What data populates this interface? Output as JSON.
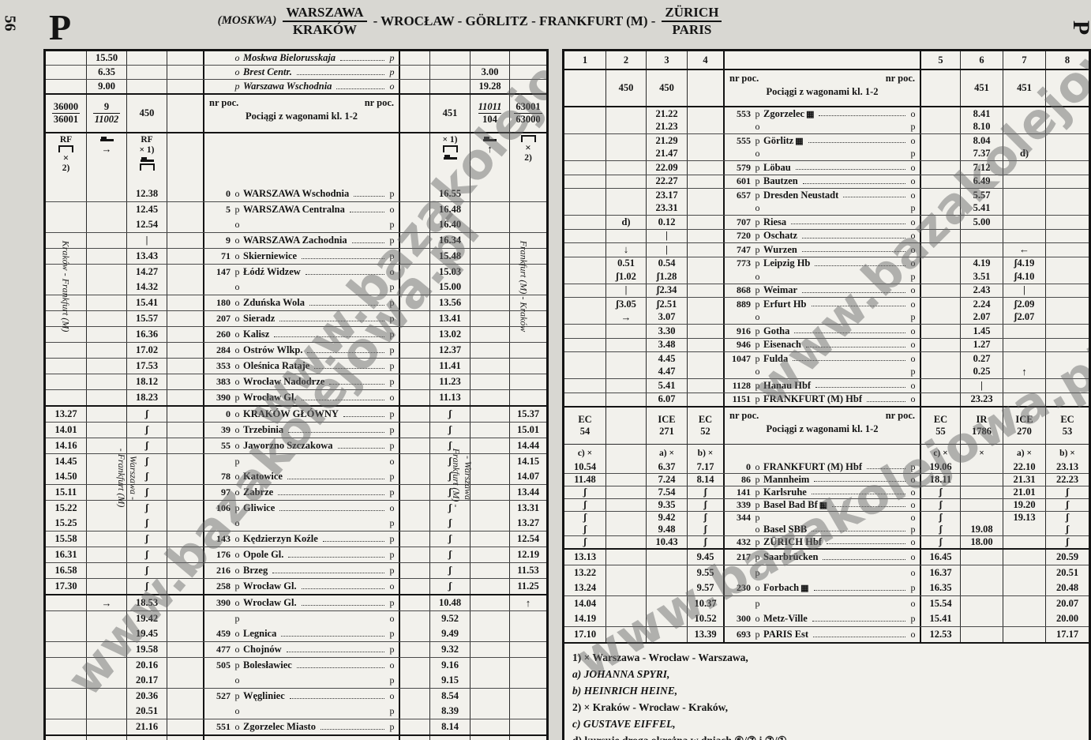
{
  "page": {
    "page_number": "56",
    "corner_letter_left": "P",
    "corner_letter_right": "P",
    "watermark": "www.bazakolejowa.pl",
    "title": {
      "prefix": "(MOSKWA)",
      "origin_top": "WARSZAWA",
      "origin_bottom": "KRAKÓW",
      "middle": "- WROCŁAW - GÖRLITZ - FRANKFURT (M) -",
      "dest_top": "ZÜRICH",
      "dest_bottom": "PARIS"
    }
  },
  "labels": {
    "nr_poc": "nr poc.",
    "wagons": "Pociągi z wagonami kl. 1-2",
    "rf": "RF",
    "x1": "× 1)",
    "x": "×",
    "n2": "2)"
  },
  "col_numbers": [
    "1",
    "2",
    "3",
    "4",
    "5",
    "6",
    "7",
    "8"
  ],
  "left_table": {
    "trains": {
      "c1a": "36000",
      "c1b": "36001",
      "c2a": "9",
      "c2b": "11002",
      "c3": "450",
      "c6": "451",
      "c7a": "11011",
      "c7b": "104",
      "c8a": "63001",
      "c8b": "63000"
    },
    "vlabels": {
      "col1": "Kraków - Frankfurt (M)",
      "col8": "Frankfurt (M) - Kraków",
      "krakow_left_1": "Warszawa -",
      "krakow_left_2": "- Frankfurt (M)",
      "krakow_right_1": "- Warszawa",
      "krakow_right_2": "Frankfurt (M) -"
    },
    "sections": {
      "pre": {
        "h": 17,
        "italic": true,
        "rows": [
          {
            "lm": "o",
            "nm": "Moskwa Bielorusskaja",
            "rm": "p",
            "t": {
              "2": "15.50"
            }
          },
          {
            "lm": "o",
            "nm": "Brest Centr.",
            "rm": "p",
            "t": {
              "2": "6.35",
              "7": "3.00"
            }
          },
          {
            "lm": "p",
            "nm": "Warszawa Wschodnia",
            "rm": "o",
            "t": {
              "2": "9.00",
              "7": "19.28"
            }
          }
        ]
      },
      "warszawa": {
        "h": 19,
        "rows": [
          {
            "km": "0",
            "lm": "o",
            "nm": "WARSZAWA Wschodnia",
            "rm": "p",
            "t": {
              "3": "12.38",
              "6": "16.55"
            }
          },
          {
            "km": "5",
            "lm": "p",
            "nm": "WARSZAWA Centralna",
            "rm": "o",
            "t": {
              "3": "12.45",
              "6": "16.48"
            }
          },
          {
            "nb": true,
            "lm": "o",
            "rm": "p",
            "t": {
              "3": "12.54",
              "6": "16.40"
            }
          },
          {
            "km": "9",
            "lm": "o",
            "nm": "WARSZAWA Zachodnia",
            "rm": "p",
            "t": {
              "3": "|",
              "6": "16.34"
            }
          },
          {
            "km": "71",
            "lm": "o",
            "nm": "Skierniewice",
            "rm": "p",
            "t": {
              "3": "13.43",
              "6": "15.48"
            }
          },
          {
            "km": "147",
            "lm": "p",
            "nm": "Łódź Widzew",
            "rm": "o",
            "t": {
              "3": "14.27",
              "6": "15.03"
            }
          },
          {
            "nb": true,
            "lm": "o",
            "rm": "p",
            "t": {
              "3": "14.32",
              "6": "15.00"
            }
          },
          {
            "km": "180",
            "lm": "o",
            "nm": "Zduńska Wola",
            "rm": "p",
            "t": {
              "3": "15.41",
              "6": "13.56"
            }
          },
          {
            "km": "207",
            "lm": "o",
            "nm": "Sieradz",
            "rm": "p",
            "t": {
              "3": "15.57",
              "6": "13.41"
            }
          },
          {
            "km": "260",
            "lm": "o",
            "nm": "Kalisz",
            "rm": "p",
            "t": {
              "3": "16.36",
              "6": "13.02"
            }
          },
          {
            "km": "284",
            "lm": "o",
            "nm": "Ostrów Wlkp.",
            "rm": "p",
            "t": {
              "3": "17.02",
              "6": "12.37"
            }
          },
          {
            "km": "353",
            "lm": "o",
            "nm": "Oleśnica Rataje",
            "rm": "p",
            "t": {
              "3": "17.53",
              "6": "11.41"
            }
          },
          {
            "km": "383",
            "lm": "o",
            "nm": "Wrocław Nadodrze",
            "rm": "p",
            "t": {
              "3": "18.12",
              "6": "11.23"
            }
          },
          {
            "km": "390",
            "lm": "p",
            "nm": "Wrocław Gl.",
            "rm": "o",
            "t": {
              "3": "18.23",
              "6": "11.13"
            }
          }
        ]
      },
      "krakow": {
        "h": 19,
        "rows": [
          {
            "km": "0",
            "lm": "o",
            "nm": "KRAKÓW GŁÓWNY",
            "rm": "p",
            "t": {
              "1": "13.27",
              "3": "ʃ",
              "6": "ʃ",
              "8": "15.37"
            }
          },
          {
            "km": "39",
            "lm": "o",
            "nm": "Trzebinia",
            "rm": "p",
            "t": {
              "1": "14.01",
              "3": "ʃ",
              "6": "ʃ",
              "8": "15.01"
            }
          },
          {
            "km": "55",
            "lm": "o",
            "nm": "Jaworzno Szczakowa",
            "rm": "p",
            "t": {
              "1": "14.16",
              "3": "ʃ",
              "6": "ʃ",
              "8": "14.44"
            }
          },
          {
            "lm": "p",
            "rm": "o",
            "t": {
              "1": "14.45",
              "3": "ʃ",
              "6": "ʃ",
              "8": "14.15"
            }
          },
          {
            "nb": true,
            "km": "78",
            "lm": "o",
            "nm": "Katowice",
            "rm": "p",
            "t": {
              "1": "14.50",
              "3": "ʃ",
              "6": "ʃ",
              "8": "14.07"
            }
          },
          {
            "km": "97",
            "lm": "o",
            "nm": "Zabrze",
            "rm": "p",
            "t": {
              "1": "15.11",
              "3": "ʃ",
              "6": "ʃ",
              "8": "13.44"
            }
          },
          {
            "km": "106",
            "lm": "p",
            "nm": "Gliwice",
            "rm": "o",
            "t": {
              "1": "15.22",
              "3": "ʃ",
              "6": "ʃ",
              "8": "13.31"
            }
          },
          {
            "nb": true,
            "lm": "o",
            "rm": "p",
            "t": {
              "1": "15.25",
              "3": "ʃ",
              "6": "ʃ",
              "8": "13.27"
            }
          },
          {
            "km": "143",
            "lm": "o",
            "nm": "Kędzierzyn Koźle",
            "rm": "p",
            "t": {
              "1": "15.58",
              "3": "ʃ",
              "6": "ʃ",
              "8": "12.54"
            }
          },
          {
            "km": "176",
            "lm": "o",
            "nm": "Opole Gl.",
            "rm": "p",
            "t": {
              "1": "16.31",
              "3": "ʃ",
              "6": "ʃ",
              "8": "12.19"
            }
          },
          {
            "km": "216",
            "lm": "o",
            "nm": "Brzeg",
            "rm": "p",
            "t": {
              "1": "16.58",
              "3": "ʃ",
              "6": "ʃ",
              "8": "11.53"
            }
          },
          {
            "km": "258",
            "lm": "p",
            "nm": "Wrocław Gl.",
            "rm": "o",
            "t": {
              "1": "17.30",
              "3": "ʃ",
              "6": "ʃ",
              "8": "11.25"
            }
          }
        ]
      },
      "bottom": {
        "h": 19,
        "rows": [
          {
            "km": "390",
            "lm": "o",
            "nm": "Wrocław Gl.",
            "rm": "p",
            "t": {
              "2": "→",
              "3": "18.53",
              "6": "10.48",
              "8": "↑"
            }
          },
          {
            "lm": "p",
            "rm": "o",
            "t": {
              "3": "19.42",
              "6": "9.52"
            }
          },
          {
            "nb": true,
            "km": "459",
            "lm": "o",
            "nm": "Legnica",
            "rm": "p",
            "t": {
              "3": "19.45",
              "6": "9.49"
            }
          },
          {
            "km": "477",
            "lm": "o",
            "nm": "Chojnów",
            "rm": "p",
            "t": {
              "3": "19.58",
              "6": "9.32"
            }
          },
          {
            "km": "505",
            "lm": "p",
            "nm": "Bolesławiec",
            "rm": "o",
            "t": {
              "3": "20.16",
              "6": "9.16"
            }
          },
          {
            "nb": true,
            "lm": "o",
            "rm": "p",
            "t": {
              "3": "20.17",
              "6": "9.15"
            }
          },
          {
            "km": "527",
            "lm": "p",
            "nm": "Węgliniec",
            "rm": "o",
            "t": {
              "3": "20.36",
              "6": "8.54"
            }
          },
          {
            "nb": true,
            "lm": "o",
            "rm": "p",
            "t": {
              "3": "20.51",
              "6": "8.39"
            }
          },
          {
            "km": "551",
            "lm": "o",
            "nm": "Zgorzelec Miasto",
            "rm": "p",
            "t": {
              "3": "21.16",
              "6": "8.14"
            }
          }
        ]
      }
    }
  },
  "right_table": {
    "trains": {
      "c2": "450",
      "c3": "450",
      "c6": "451",
      "c7": "451"
    },
    "ec_trains": {
      "c1a": "EC",
      "c1b": "54",
      "c3a": "ICE",
      "c3b": "271",
      "c4a": "EC",
      "c4b": "52",
      "c5a": "EC",
      "c5b": "55",
      "c6a": "IR",
      "c6b": "1786",
      "c7a": "ICE",
      "c7b": "270",
      "c8a": "EC",
      "c8b": "53"
    },
    "ec_symbols": {
      "c1": "c) ×",
      "c3": "a) ×",
      "c4": "b) ×",
      "c5": "c) ×",
      "c6": "×",
      "c7": "a) ×",
      "c8": "b) ×"
    },
    "sections": {
      "top": {
        "h": 16.5,
        "rows": [
          {
            "km": "553",
            "lm": "p",
            "nm": "Zgorzelec",
            "ic": true,
            "rm": "o",
            "t": {
              "3": "21.22",
              "6": "8.41"
            }
          },
          {
            "nb": true,
            "lm": "o",
            "rm": "p",
            "t": {
              "3": "21.23",
              "6": "8.10"
            }
          },
          {
            "km": "555",
            "lm": "p",
            "nm": "Görlitz",
            "ic": true,
            "rm": "o",
            "t": {
              "3": "21.29",
              "6": "8.04"
            }
          },
          {
            "nb": true,
            "lm": "o",
            "rm": "p",
            "t": {
              "3": "21.47",
              "6": "7.37",
              "7": "d)"
            }
          },
          {
            "km": "579",
            "lm": "p",
            "nm": "Löbau",
            "rm": "o",
            "t": {
              "3": "22.09",
              "6": "7.12"
            }
          },
          {
            "km": "601",
            "lm": "p",
            "nm": "Bautzen",
            "rm": "o",
            "t": {
              "3": "22.27",
              "6": "6.49"
            }
          },
          {
            "km": "657",
            "lm": "p",
            "nm": "Dresden Neustadt",
            "rm": "o",
            "t": {
              "3": "23.17",
              "6": "5.57"
            }
          },
          {
            "nb": true,
            "lm": "o",
            "rm": "p",
            "t": {
              "3": "23.31",
              "6": "5.41"
            }
          },
          {
            "km": "707",
            "lm": "p",
            "nm": "Riesa",
            "rm": "o",
            "t": {
              "2": "d)",
              "3": "0.12",
              "6": "5.00"
            }
          },
          {
            "km": "720",
            "lm": "p",
            "nm": "Oschatz",
            "rm": "o",
            "t": {
              "3": "|"
            }
          },
          {
            "km": "747",
            "lm": "p",
            "nm": "Wurzen",
            "rm": "o",
            "t": {
              "2": "↓",
              "3": "|",
              "7": "←"
            }
          },
          {
            "km": "773",
            "lm": "p",
            "nm": "Leipzig Hb",
            "rm": "o",
            "t": {
              "2": "0.51",
              "3": "0.54",
              "6": "4.19",
              "7": "ʃ4.19"
            }
          },
          {
            "nb": true,
            "lm": "o",
            "rm": "p",
            "t": {
              "2": "ʃ1.02",
              "3": "ʃ1.28",
              "6": "3.51",
              "7": "ʃ4.10"
            }
          },
          {
            "km": "868",
            "lm": "p",
            "nm": "Weimar",
            "rm": "o",
            "t": {
              "2": "|",
              "3": "ʃ2.34",
              "6": "2.43",
              "7": "|"
            }
          },
          {
            "km": "889",
            "lm": "p",
            "nm": "Erfurt Hb",
            "rm": "o",
            "t": {
              "2": "ʃ3.05",
              "3": "ʃ2.51",
              "6": "2.24",
              "7": "ʃ2.09"
            }
          },
          {
            "nb": true,
            "lm": "o",
            "rm": "p",
            "t": {
              "2": "→",
              "3": "3.07",
              "6": "2.07",
              "7": "ʃ2.07"
            }
          },
          {
            "km": "916",
            "lm": "p",
            "nm": "Gotha",
            "rm": "o",
            "t": {
              "3": "3.30",
              "6": "1.45"
            }
          },
          {
            "km": "946",
            "lm": "p",
            "nm": "Eisenach",
            "rm": "o",
            "t": {
              "3": "3.48",
              "6": "1.27"
            }
          },
          {
            "km": "1047",
            "lm": "p",
            "nm": "Fulda",
            "rm": "o",
            "t": {
              "3": "4.45",
              "6": "0.27"
            }
          },
          {
            "nb": true,
            "lm": "o",
            "rm": "p",
            "t": {
              "3": "4.47",
              "6": "0.25",
              "7": "↑"
            }
          },
          {
            "km": "1128",
            "lm": "p",
            "nm": "Hanau Hbf",
            "rm": "o",
            "t": {
              "3": "5.41",
              "6": "|"
            }
          },
          {
            "km": "1151",
            "lm": "p",
            "nm": "FRANKFURT (M) Hbf",
            "rm": "o",
            "t": {
              "3": "6.07",
              "6": "23.23"
            }
          }
        ]
      },
      "ec": {
        "h": 15,
        "rows": [
          {
            "km": "0",
            "lm": "o",
            "nm": "FRANKFURT (M) Hbf",
            "rm": "p",
            "t": {
              "1": "10.54",
              "3": "6.37",
              "4": "7.17",
              "5": "19.06",
              "7": "22.10",
              "8": "23.13"
            }
          },
          {
            "km": "86",
            "lm": "p",
            "nm": "Mannheim",
            "rm": "o",
            "t": {
              "1": "11.48",
              "3": "7.24",
              "4": "8.14",
              "5": "18.11",
              "7": "21.31",
              "8": "22.23"
            }
          },
          {
            "km": "141",
            "lm": "p",
            "nm": "Karlsruhe",
            "rm": "o",
            "t": {
              "1": "ʃ",
              "3": "7.54",
              "4": "ʃ",
              "5": "ʃ",
              "7": "21.01",
              "8": "ʃ"
            }
          },
          {
            "km": "339",
            "lm": "p",
            "nm": "Basel Bad Bf",
            "ic": true,
            "rm": "o",
            "t": {
              "1": "ʃ",
              "3": "9.35",
              "4": "ʃ",
              "5": "ʃ",
              "7": "19.20",
              "8": "ʃ"
            }
          },
          {
            "km": "344",
            "lm": "p",
            "rm": "o",
            "t": {
              "1": "ʃ",
              "3": "9.42",
              "4": "ʃ",
              "5": "ʃ",
              "7": "19.13",
              "8": "ʃ"
            }
          },
          {
            "nb": true,
            "lm": "o",
            "nm": "Basel SBB",
            "rm": "p",
            "t": {
              "1": "ʃ",
              "3": "9.48",
              "4": "ʃ",
              "5": "ʃ",
              "6": "19.08",
              "8": "ʃ"
            }
          },
          {
            "km": "432",
            "lm": "p",
            "nm": "ZÜRICH Hbf",
            "rm": "o",
            "t": {
              "1": "ʃ",
              "3": "10.43",
              "4": "ʃ",
              "5": "ʃ",
              "6": "18.00",
              "8": "ʃ"
            }
          }
        ]
      },
      "paris": {
        "h": 19,
        "rows": [
          {
            "km": "217",
            "lm": "p",
            "nm": "Saarbrücken",
            "rm": "o",
            "t": {
              "1": "13.13",
              "4": "9.45",
              "5": "16.45",
              "8": "20.59"
            }
          },
          {
            "lm": "p",
            "rm": "o",
            "t": {
              "1": "13.22",
              "4": "9.55",
              "5": "16.37",
              "8": "20.51"
            }
          },
          {
            "nb": true,
            "km": "230",
            "lm": "o",
            "nm": "Forbach",
            "ic": true,
            "rm": "p",
            "t": {
              "1": "13.24",
              "4": "9.57",
              "5": "16.35",
              "8": "20.48"
            }
          },
          {
            "lm": "p",
            "rm": "o",
            "t": {
              "1": "14.04",
              "4": "10.37",
              "5": "15.54",
              "8": "20.07"
            }
          },
          {
            "nb": true,
            "km": "300",
            "lm": "o",
            "nm": "Metz-Ville",
            "rm": "p",
            "t": {
              "1": "14.19",
              "4": "10.52",
              "5": "15.41",
              "8": "20.00"
            }
          },
          {
            "km": "693",
            "lm": "p",
            "nm": "PARIS Est",
            "rm": "o",
            "t": {
              "1": "17.10",
              "4": "13.39",
              "5": "12.53",
              "8": "17.17"
            }
          }
        ]
      }
    },
    "footnotes": [
      {
        "text": "1) × Warszawa - Wrocław - Warszawa,"
      },
      {
        "text": "a) JOHANNA SPYRI,"
      },
      {
        "text": "b) HEINRICH HEINE,"
      },
      {
        "text": "2) × Kraków - Wrocław - Kraków,"
      },
      {
        "text": "c) GUSTAVE EIFFEL,"
      },
      {
        "text": "d) kursuje drogą okrężną w dniach ⑥/⑦ i ⑦/①"
      }
    ]
  }
}
